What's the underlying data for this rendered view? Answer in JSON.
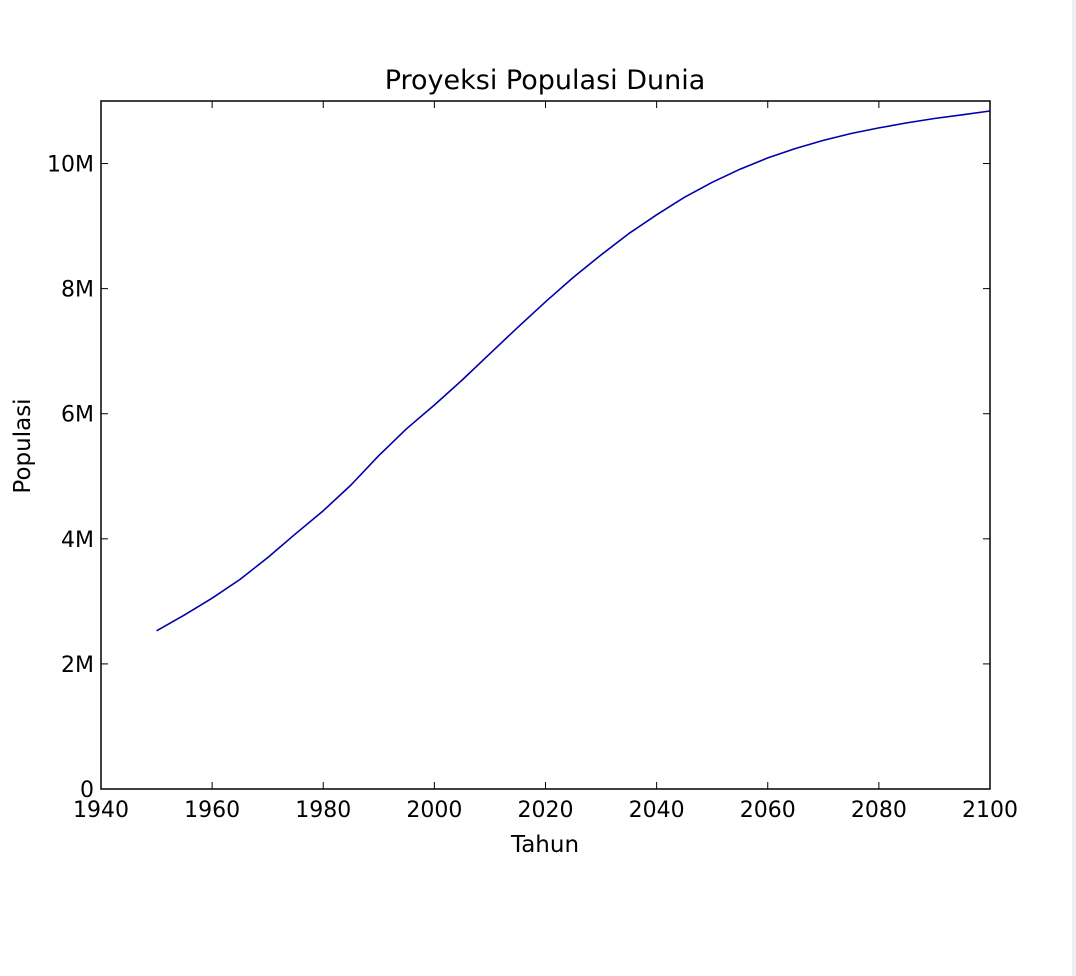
{
  "chart_data": {
    "type": "line",
    "title": "Proyeksi Populasi Dunia",
    "xlabel": "Tahun",
    "ylabel": "Populasi",
    "xlim": [
      1940,
      2100
    ],
    "ylim": [
      0,
      11000000
    ],
    "xticks": [
      1940,
      1960,
      1980,
      2000,
      2020,
      2040,
      2060,
      2080,
      2100
    ],
    "xtick_labels": [
      "1940",
      "1960",
      "1980",
      "2000",
      "2020",
      "2040",
      "2060",
      "2080",
      "2100"
    ],
    "yticks": [
      0,
      2000000,
      4000000,
      6000000,
      8000000,
      10000000
    ],
    "ytick_labels": [
      "0",
      "2M",
      "4M",
      "6M",
      "8M",
      "10M"
    ],
    "grid": false,
    "line_color": "#0000aa",
    "series": [
      {
        "x": [
          1950,
          1955,
          1960,
          1965,
          1970,
          1975,
          1980,
          1985,
          1990,
          1995,
          2000,
          2005,
          2010,
          2015,
          2020,
          2025,
          2030,
          2035,
          2040,
          2045,
          2050,
          2055,
          2060,
          2065,
          2070,
          2075,
          2080,
          2085,
          2090,
          2095,
          2100
        ],
        "values": [
          2530000,
          2780000,
          3050000,
          3350000,
          3700000,
          4080000,
          4450000,
          4860000,
          5330000,
          5760000,
          6140000,
          6540000,
          6960000,
          7380000,
          7790000,
          8180000,
          8540000,
          8880000,
          9180000,
          9460000,
          9700000,
          9910000,
          10090000,
          10240000,
          10370000,
          10480000,
          10570000,
          10650000,
          10720000,
          10780000,
          10840000
        ]
      }
    ]
  }
}
